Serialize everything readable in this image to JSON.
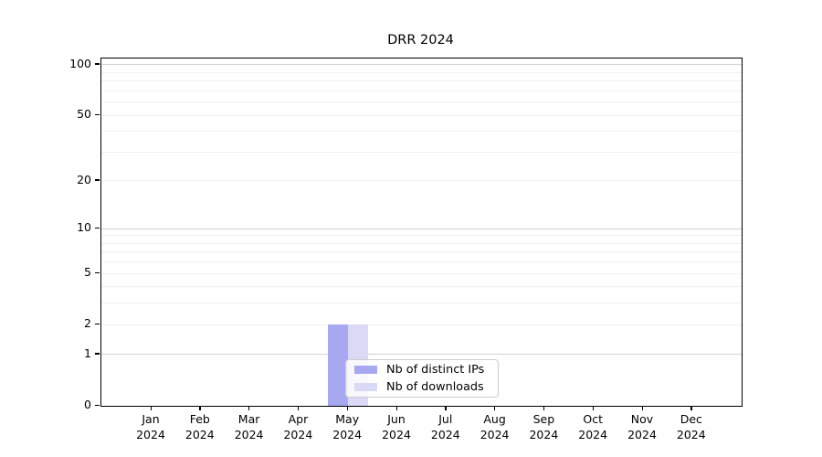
{
  "chart_data": {
    "type": "bar",
    "title": "DRR 2024",
    "x": [
      "Jan 2024",
      "Feb 2024",
      "Mar 2024",
      "Apr 2024",
      "May 2024",
      "Jun 2024",
      "Jul 2024",
      "Aug 2024",
      "Sep 2024",
      "Oct 2024",
      "Nov 2024",
      "Dec 2024"
    ],
    "series": [
      {
        "name": "Nb of distinct IPs",
        "color": "#a8a8f0",
        "values": [
          0,
          0,
          0,
          0,
          2,
          0,
          0,
          0,
          0,
          0,
          0,
          0
        ]
      },
      {
        "name": "Nb of downloads",
        "color": "#dadaf7",
        "values": [
          0,
          0,
          0,
          0,
          2,
          0,
          0,
          0,
          0,
          0,
          0,
          0
        ]
      }
    ],
    "xlabel": "",
    "ylabel": "",
    "yscale": "log1p",
    "ylim": [
      0,
      109
    ],
    "yticks": {
      "values": [
        0,
        1,
        2,
        5,
        10,
        20,
        50,
        100
      ],
      "labels": [
        "0",
        "1",
        "2",
        "5",
        "10",
        "20",
        "50",
        "100"
      ]
    },
    "grid": {
      "major_values": [
        1,
        10,
        100
      ],
      "minor_values": [
        2,
        3,
        4,
        5,
        6,
        7,
        8,
        9,
        20,
        30,
        40,
        50,
        60,
        70,
        80,
        90
      ],
      "major_color": "#d2d2d2",
      "minor_color": "#f0f0f0"
    },
    "legend": {
      "items": [
        {
          "label": "Nb of distinct IPs",
          "color": "#a8a8f0"
        },
        {
          "label": "Nb of downloads",
          "color": "#dadaf7"
        }
      ],
      "position": "lower center"
    }
  },
  "colors": {
    "background": "#ffffff",
    "spine": "#000000",
    "text": "#000000",
    "legend_border": "#cccccc"
  }
}
